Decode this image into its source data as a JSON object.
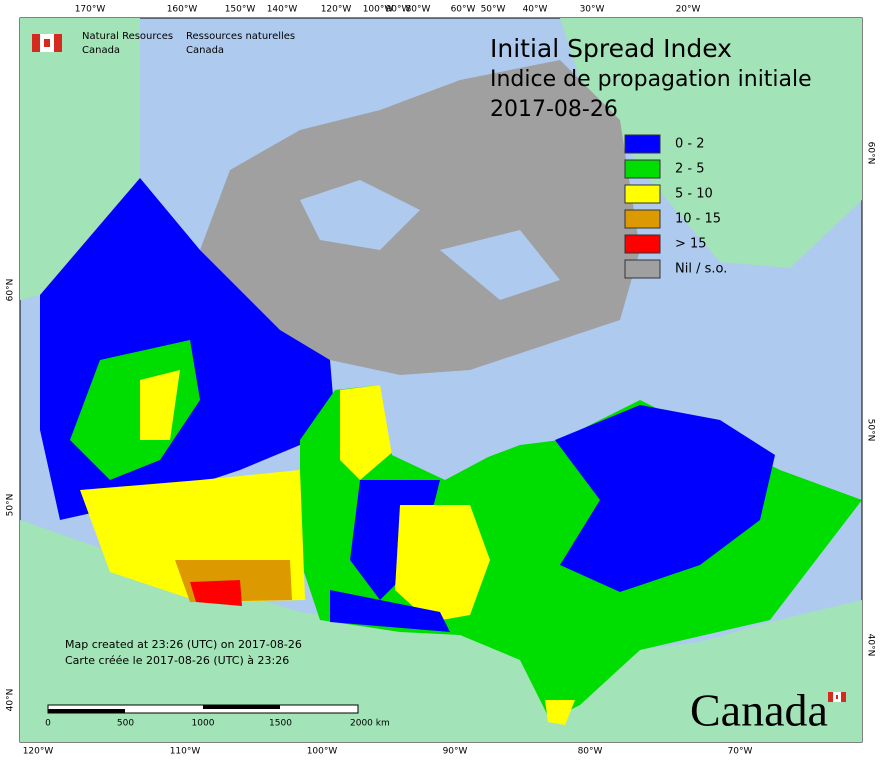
{
  "header": {
    "org_en": [
      "Natural Resources",
      "Canada"
    ],
    "org_fr": [
      "Ressources naturelles",
      "Canada"
    ]
  },
  "title": {
    "lines": [
      "Initial Spread Index",
      "Indice de propagation initiale",
      "2017-08-26"
    ]
  },
  "legend": [
    {
      "label": "0 - 2",
      "color": "#0000ff"
    },
    {
      "label": "2 - 5",
      "color": "#00dd00"
    },
    {
      "label": "5 - 10",
      "color": "#ffff00"
    },
    {
      "label": "10 - 15",
      "color": "#dd9900"
    },
    {
      "label": "> 15",
      "color": "#ff0000"
    },
    {
      "label": "Nil / s.o.",
      "color": "#a0a0a0"
    }
  ],
  "graticule": {
    "top": [
      "170°W",
      "160°W",
      "150°W",
      "140°W",
      "120°W",
      "100°W",
      "90°W",
      "80°W",
      "60°W",
      "50°W",
      "40°W",
      "30°W",
      "20°W"
    ],
    "bottom": [
      "120°W",
      "110°W",
      "100°W",
      "90°W",
      "80°W",
      "70°W"
    ],
    "left": [
      "60°N",
      "50°N",
      "40°N"
    ],
    "right": [
      "60°N",
      "50°N",
      "40°N"
    ]
  },
  "footer": {
    "created": [
      "Map created at 23:26 (UTC) on 2017-08-26",
      "Carte créée le 2017-08-26 (UTC) à 23:26"
    ],
    "scale": [
      "0",
      "500",
      "1000",
      "1500",
      "2000 km"
    ],
    "wordmark": "Canada"
  }
}
